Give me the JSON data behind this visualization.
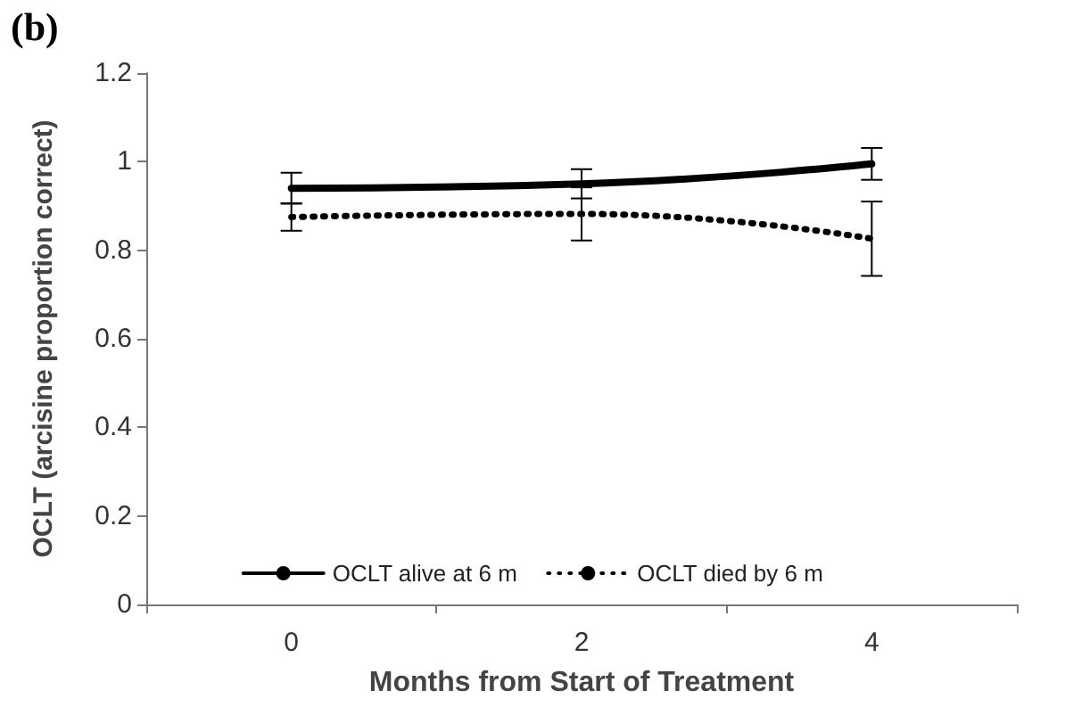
{
  "chart_data": {
    "type": "line",
    "xlabel": "Months from Start of Treatment",
    "ylabel": "OCLT (arcisine proportion correct)",
    "annotations": [
      "(b)"
    ],
    "categories": [
      "0",
      "2",
      "4"
    ],
    "series": [
      {
        "name": "OCLT alive at 6 m",
        "color": "#000000",
        "line_style": "solid",
        "values": [
          0.94,
          0.95,
          0.995
        ],
        "errors": [
          0.035,
          0.033,
          0.036
        ]
      },
      {
        "name": "OCLT died by 6 m",
        "color": "#000000",
        "line_style": "dotted",
        "values": [
          0.875,
          0.882,
          0.826
        ],
        "errors": [
          0.031,
          0.06,
          0.084
        ]
      }
    ],
    "ylim": [
      0,
      1.2
    ],
    "yticks": [
      0,
      0.2,
      0.4,
      0.6,
      0.8,
      1,
      1.2
    ],
    "grid": false,
    "legend": "bottom",
    "marker": "none"
  }
}
